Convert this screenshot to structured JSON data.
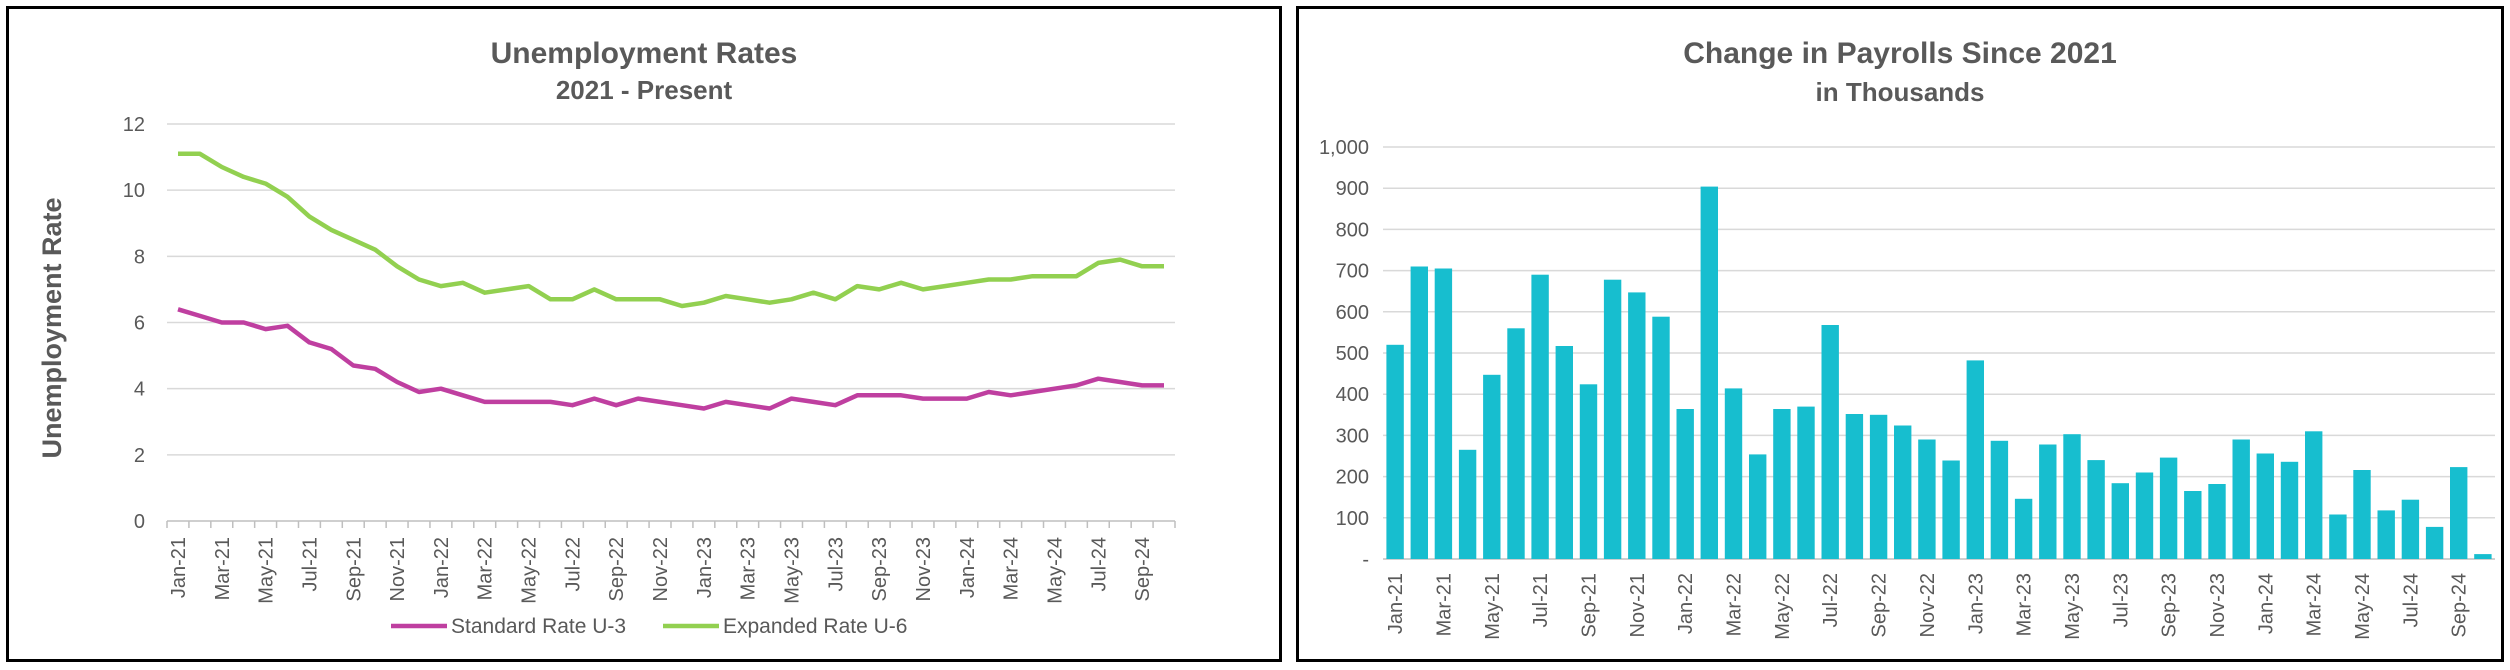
{
  "chart_data": [
    {
      "type": "line",
      "title": "Unemployment Rates",
      "subtitle": "2021 - Present",
      "xlabel": "",
      "ylabel": "Unemployment Rate",
      "ylim": [
        0,
        12
      ],
      "yticks": [
        "0",
        "2",
        "4",
        "6",
        "8",
        "10",
        "12"
      ],
      "grid": true,
      "legend_position": "bottom",
      "x_tick_labels": [
        "Jan-21",
        "Mar-21",
        "May-21",
        "Jul-21",
        "Sep-21",
        "Nov-21",
        "Jan-22",
        "Mar-22",
        "May-22",
        "Jul-22",
        "Sep-22",
        "Nov-22",
        "Jan-23",
        "Mar-23",
        "May-23",
        "Jul-23",
        "Sep-23",
        "Nov-23",
        "Jan-24",
        "Mar-24",
        "May-24",
        "Jul-24",
        "Sep-24"
      ],
      "x": [
        "Jan-21",
        "Feb-21",
        "Mar-21",
        "Apr-21",
        "May-21",
        "Jun-21",
        "Jul-21",
        "Aug-21",
        "Sep-21",
        "Oct-21",
        "Nov-21",
        "Dec-21",
        "Jan-22",
        "Feb-22",
        "Mar-22",
        "Apr-22",
        "May-22",
        "Jun-22",
        "Jul-22",
        "Aug-22",
        "Sep-22",
        "Oct-22",
        "Nov-22",
        "Dec-22",
        "Jan-23",
        "Feb-23",
        "Mar-23",
        "Apr-23",
        "May-23",
        "Jun-23",
        "Jul-23",
        "Aug-23",
        "Sep-23",
        "Oct-23",
        "Nov-23",
        "Dec-23",
        "Jan-24",
        "Feb-24",
        "Mar-24",
        "Apr-24",
        "May-24",
        "Jun-24",
        "Jul-24",
        "Aug-24",
        "Sep-24",
        "Oct-24"
      ],
      "series": [
        {
          "name": "Standard Rate U-3",
          "color": "#bf3fa0",
          "values": [
            6.4,
            6.2,
            6.0,
            6.0,
            5.8,
            5.9,
            5.4,
            5.2,
            4.7,
            4.6,
            4.2,
            3.9,
            4.0,
            3.8,
            3.6,
            3.6,
            3.6,
            3.6,
            3.5,
            3.7,
            3.5,
            3.7,
            3.6,
            3.5,
            3.4,
            3.6,
            3.5,
            3.4,
            3.7,
            3.6,
            3.5,
            3.8,
            3.8,
            3.8,
            3.7,
            3.7,
            3.7,
            3.9,
            3.8,
            3.9,
            4.0,
            4.1,
            4.3,
            4.2,
            4.1,
            4.1
          ]
        },
        {
          "name": "Expanded Rate U-6",
          "color": "#92d050",
          "values": [
            11.1,
            11.1,
            10.7,
            10.4,
            10.2,
            9.8,
            9.2,
            8.8,
            8.5,
            8.2,
            7.7,
            7.3,
            7.1,
            7.2,
            6.9,
            7.0,
            7.1,
            6.7,
            6.7,
            7.0,
            6.7,
            6.7,
            6.7,
            6.5,
            6.6,
            6.8,
            6.7,
            6.6,
            6.7,
            6.9,
            6.7,
            7.1,
            7.0,
            7.2,
            7.0,
            7.1,
            7.2,
            7.3,
            7.3,
            7.4,
            7.4,
            7.4,
            7.8,
            7.9,
            7.7,
            7.7
          ]
        }
      ]
    },
    {
      "type": "bar",
      "title": "Change in Payrolls Since 2021",
      "subtitle": "in Thousands",
      "xlabel": "",
      "ylabel": "",
      "ylim": [
        0,
        1000
      ],
      "yticks": [
        "-",
        "100",
        "200",
        "300",
        "400",
        "500",
        "600",
        "700",
        "800",
        "900",
        "1,000"
      ],
      "grid": true,
      "bar_color": "#17becf",
      "x_tick_labels": [
        "Jan-21",
        "Mar-21",
        "May-21",
        "Jul-21",
        "Sep-21",
        "Nov-21",
        "Jan-22",
        "Mar-22",
        "May-22",
        "Jul-22",
        "Sep-22",
        "Nov-22",
        "Jan-23",
        "Mar-23",
        "May-23",
        "Jul-23",
        "Sep-23",
        "Nov-23",
        "Jan-24",
        "Mar-24",
        "May-24",
        "Jul-24",
        "Sep-24"
      ],
      "categories": [
        "Jan-21",
        "Feb-21",
        "Mar-21",
        "Apr-21",
        "May-21",
        "Jun-21",
        "Jul-21",
        "Aug-21",
        "Sep-21",
        "Oct-21",
        "Nov-21",
        "Dec-21",
        "Jan-22",
        "Feb-22",
        "Mar-22",
        "Apr-22",
        "May-22",
        "Jun-22",
        "Jul-22",
        "Aug-22",
        "Sep-22",
        "Oct-22",
        "Nov-22",
        "Dec-22",
        "Jan-23",
        "Feb-23",
        "Mar-23",
        "Apr-23",
        "May-23",
        "Jun-23",
        "Jul-23",
        "Aug-23",
        "Sep-23",
        "Oct-23",
        "Nov-23",
        "Dec-23",
        "Jan-24",
        "Feb-24",
        "Mar-24",
        "Apr-24",
        "May-24",
        "Jun-24",
        "Jul-24",
        "Aug-24",
        "Sep-24",
        "Oct-24"
      ],
      "values": [
        520,
        710,
        705,
        265,
        447,
        560,
        690,
        517,
        424,
        678,
        647,
        588,
        364,
        904,
        414,
        254,
        364,
        370,
        568,
        352,
        350,
        324,
        290,
        239,
        482,
        287,
        146,
        278,
        303,
        240,
        184,
        210,
        246,
        165,
        182,
        290,
        256,
        236,
        310,
        108,
        216,
        118,
        144,
        78,
        223,
        12
      ]
    }
  ]
}
